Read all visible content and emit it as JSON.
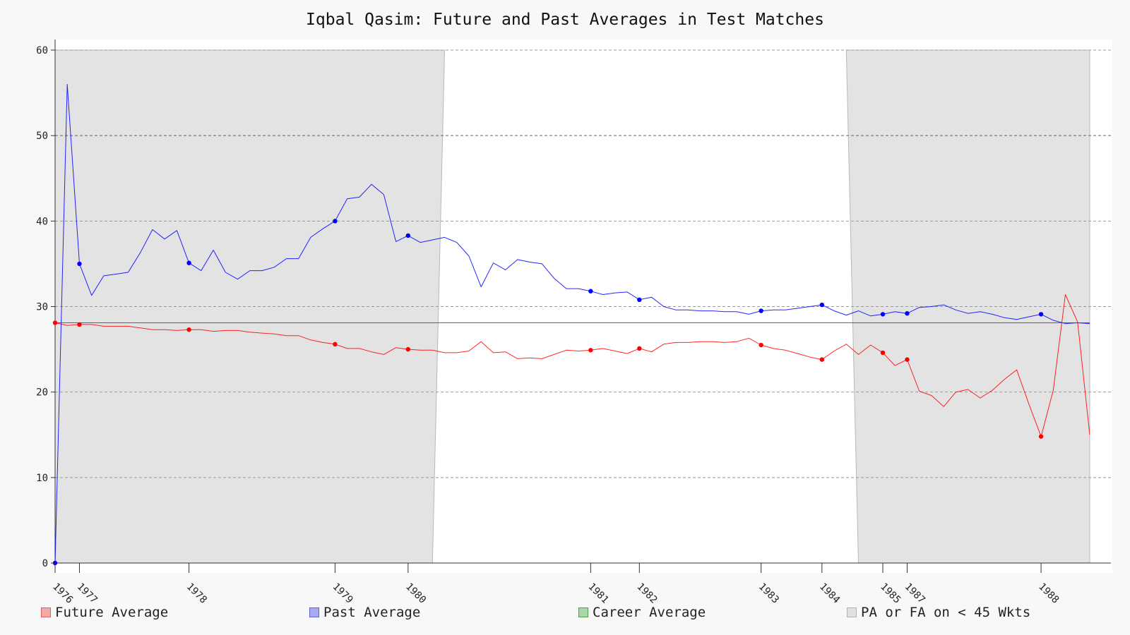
{
  "chart_data": {
    "type": "line",
    "title": "Iqbal Qasim: Future and Past Averages in Test Matches",
    "xlabel": "",
    "ylabel": "",
    "ylim": [
      0,
      60
    ],
    "yticks": [
      0,
      10,
      20,
      30,
      40,
      50,
      60
    ],
    "xlim": [
      0,
      85
    ],
    "grid": true,
    "x_tick_labels": [
      {
        "label": "1976",
        "x": 0
      },
      {
        "label": "1977",
        "x": 2
      },
      {
        "label": "1978",
        "x": 11
      },
      {
        "label": "1979",
        "x": 23
      },
      {
        "label": "1980",
        "x": 29
      },
      {
        "label": "1981",
        "x": 44
      },
      {
        "label": "1982",
        "x": 48
      },
      {
        "label": "1983",
        "x": 58
      },
      {
        "label": "1984",
        "x": 63
      },
      {
        "label": "1985",
        "x": 68
      },
      {
        "label": "1987",
        "x": 70
      },
      {
        "label": "1988",
        "x": 81
      }
    ],
    "series": [
      {
        "name": "Future Average",
        "color": "#ff0000",
        "values": [
          28.1,
          27.8,
          27.9,
          27.9,
          27.7,
          27.7,
          27.7,
          27.5,
          27.3,
          27.3,
          27.2,
          27.3,
          27.3,
          27.1,
          27.2,
          27.2,
          27.0,
          26.9,
          26.8,
          26.6,
          26.6,
          26.1,
          25.8,
          25.6,
          25.1,
          25.1,
          24.7,
          24.4,
          25.2,
          25.0,
          24.9,
          24.9,
          24.6,
          24.6,
          24.8,
          25.9,
          24.6,
          24.7,
          23.9,
          24.0,
          23.9,
          24.4,
          24.9,
          24.8,
          24.9,
          25.1,
          24.8,
          24.5,
          25.1,
          24.7,
          25.6,
          25.8,
          25.8,
          25.9,
          25.9,
          25.8,
          25.9,
          26.3,
          25.5,
          25.1,
          24.9,
          24.5,
          24.1,
          23.8,
          24.8,
          25.6,
          24.4,
          25.5,
          24.6,
          23.1,
          23.8,
          20.1,
          19.6,
          18.3,
          20.0,
          20.3,
          19.3,
          20.2,
          21.5,
          22.6,
          18.6,
          14.8,
          20.2,
          31.4,
          28.2,
          15.0
        ],
        "markers": [
          0,
          2,
          11,
          23,
          29,
          44,
          48,
          58,
          63,
          68,
          70,
          81
        ]
      },
      {
        "name": "Past Average",
        "color": "#0000ff",
        "values": [
          0,
          56.0,
          35.0,
          31.3,
          33.6,
          33.8,
          34.0,
          36.3,
          39.0,
          37.9,
          38.9,
          35.1,
          34.2,
          36.6,
          34.0,
          33.2,
          34.2,
          34.2,
          34.6,
          35.6,
          35.6,
          38.1,
          39.1,
          40.0,
          42.6,
          42.8,
          44.3,
          43.1,
          37.6,
          38.3,
          37.5,
          37.8,
          38.1,
          37.5,
          35.9,
          32.3,
          35.1,
          34.3,
          35.5,
          35.2,
          35.0,
          33.3,
          32.1,
          32.1,
          31.8,
          31.4,
          31.6,
          31.7,
          30.8,
          31.1,
          30.0,
          29.6,
          29.6,
          29.5,
          29.5,
          29.4,
          29.4,
          29.1,
          29.5,
          29.6,
          29.6,
          29.8,
          30.0,
          30.2,
          29.5,
          29.0,
          29.5,
          28.9,
          29.1,
          29.4,
          29.2,
          29.9,
          30.0,
          30.2,
          29.6,
          29.2,
          29.4,
          29.1,
          28.7,
          28.5,
          28.8,
          29.1,
          28.4,
          28.0,
          28.1,
          28.0
        ],
        "markers": [
          0,
          2,
          11,
          23,
          29,
          44,
          48,
          58,
          63,
          68,
          70,
          81
        ]
      },
      {
        "name": "Career Average",
        "color": "#008000",
        "values": [
          28.1,
          28.1
        ],
        "x": [
          0,
          85
        ]
      }
    ],
    "shaded_regions": [
      {
        "name": "PA or FA on < 45 Wkts",
        "x_top": [
          0,
          32
        ],
        "x_bottom": [
          0,
          31
        ]
      },
      {
        "name": "PA or FA on < 45 Wkts",
        "x_top": [
          65,
          85
        ],
        "x_bottom": [
          66,
          85
        ]
      }
    ],
    "legend": [
      {
        "label": "Future Average",
        "fill": "#f4a9a9",
        "stroke": "#e06060"
      },
      {
        "label": "Past Average",
        "fill": "#a9a9f4",
        "stroke": "#6060d0"
      },
      {
        "label": "Career Average",
        "fill": "#a8d8a8",
        "stroke": "#50a050"
      },
      {
        "label": "PA or FA on < 45 Wkts",
        "fill": "#e0e0e0",
        "stroke": "#b0b0b0"
      }
    ]
  }
}
